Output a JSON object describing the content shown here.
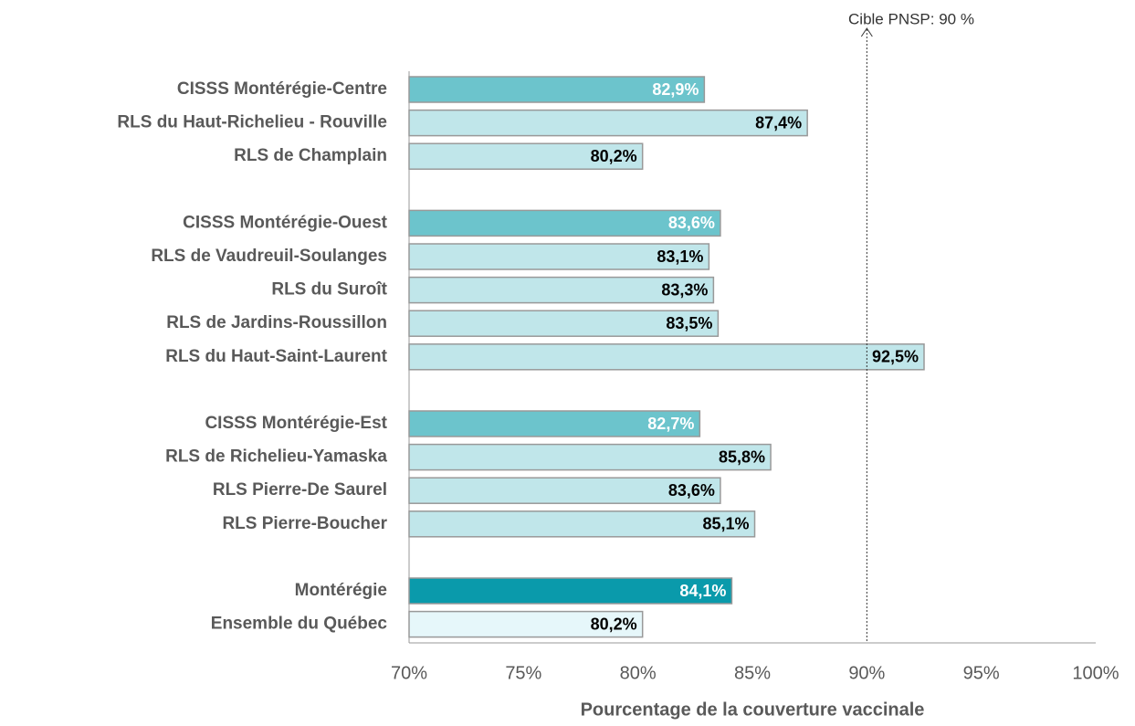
{
  "chart_data": {
    "type": "hbar",
    "x_label": "Pourcentage de la couverture vaccinale",
    "categories": [
      "CISSS Montérégie-Centre",
      "RLS du Haut-Richelieu - Rouville",
      "RLS de Champlain",
      null,
      "CISSS Montérégie-Ouest",
      "RLS de Vaudreuil-Soulanges",
      "RLS du Suroît",
      "RLS de Jardins-Roussillon",
      "RLS du Haut-Saint-Laurent",
      null,
      "CISSS Montérégie-Est",
      "RLS de Richelieu-Yamaska",
      "RLS Pierre-De Saurel",
      "RLS Pierre-Boucher",
      null,
      "Montérégie",
      "Ensemble du Québec"
    ],
    "values": [
      82.9,
      87.4,
      80.2,
      null,
      83.6,
      83.1,
      83.3,
      83.5,
      92.5,
      null,
      82.7,
      85.8,
      83.6,
      85.1,
      null,
      84.1,
      80.2
    ],
    "value_labels": [
      "82,9%",
      "87,4%",
      "80,2%",
      null,
      "83,6%",
      "83,1%",
      "83,3%",
      "83,5%",
      "92,5%",
      null,
      "82,7%",
      "85,8%",
      "83,6%",
      "85,1%",
      null,
      "84,1%",
      "80,2%"
    ],
    "colors": [
      "#6cc4cc",
      "#c0e6ea",
      "#c0e6ea",
      null,
      "#6cc4cc",
      "#c0e6ea",
      "#c0e6ea",
      "#c0e6ea",
      "#c0e6ea",
      null,
      "#6cc4cc",
      "#c0e6ea",
      "#c0e6ea",
      "#c0e6ea",
      null,
      "#0a9aab",
      "#e6f7fa"
    ],
    "value_label_colors": [
      "#ffffff",
      "#000000",
      "#000000",
      null,
      "#ffffff",
      "#000000",
      "#000000",
      "#000000",
      "#000000",
      null,
      "#ffffff",
      "#000000",
      "#000000",
      "#000000",
      null,
      "#ffffff",
      "#000000"
    ],
    "xlim": [
      70,
      100
    ],
    "xticks": [
      {
        "value": 70,
        "label": "70%"
      },
      {
        "value": 75,
        "label": "75%"
      },
      {
        "value": 80,
        "label": "80%"
      },
      {
        "value": 85,
        "label": "85%"
      },
      {
        "value": 90,
        "label": "90%"
      },
      {
        "value": 95,
        "label": "95%"
      },
      {
        "value": 100,
        "label": "100%"
      }
    ],
    "reference_line": {
      "value": 90,
      "label": "Cible PNSP: 90 %"
    },
    "grid": false
  }
}
